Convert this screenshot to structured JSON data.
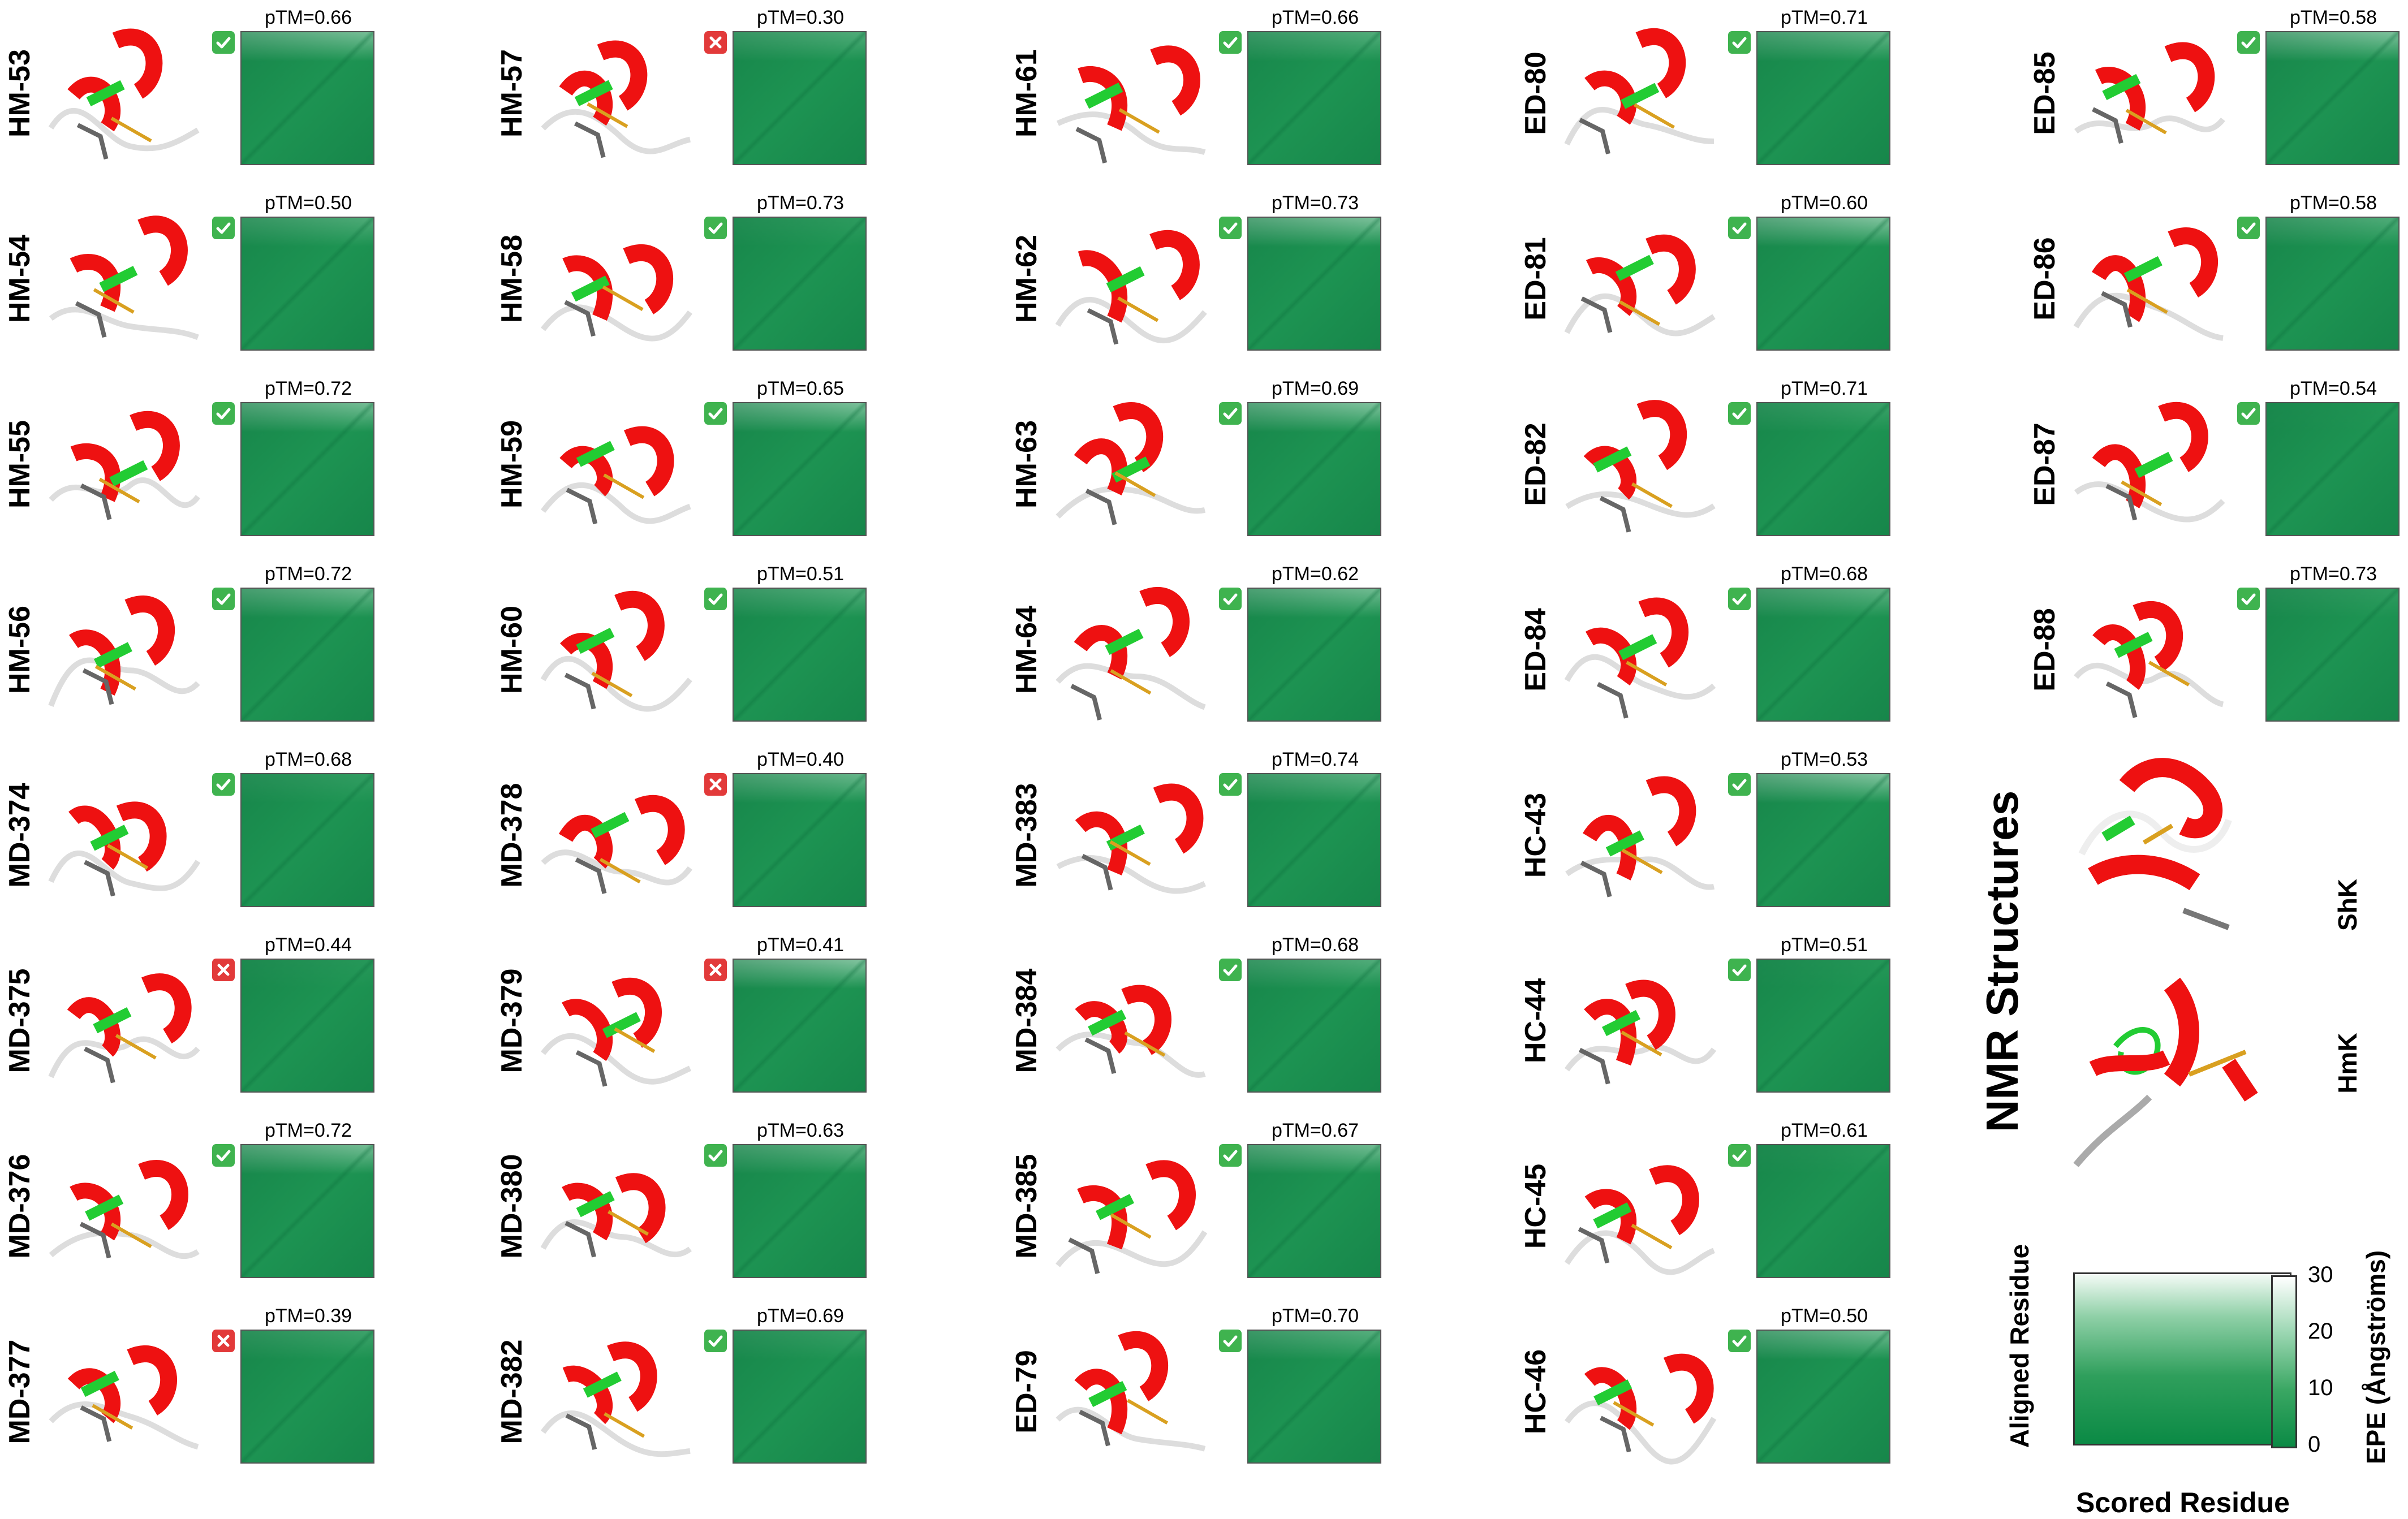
{
  "colors": {
    "pae_low": "#0b8a45",
    "pae_high": "#ffffff",
    "helix": "#ee1111",
    "sheet": "#22ddee",
    "turn": "#22cc33",
    "coil": "#dddddd",
    "pass": "#3fb34f",
    "fail": "#e23a3a"
  },
  "columns": [
    [
      {
        "name": "HM-53",
        "ptm": "pTM=0.66",
        "status": "pass"
      },
      {
        "name": "HM-54",
        "ptm": "pTM=0.50",
        "status": "pass"
      },
      {
        "name": "HM-55",
        "ptm": "pTM=0.72",
        "status": "pass"
      },
      {
        "name": "HM-56",
        "ptm": "pTM=0.72",
        "status": "pass"
      },
      {
        "name": "MD-374",
        "ptm": "pTM=0.68",
        "status": "pass"
      },
      {
        "name": "MD-375",
        "ptm": "pTM=0.44",
        "status": "fail"
      },
      {
        "name": "MD-376",
        "ptm": "pTM=0.72",
        "status": "pass"
      },
      {
        "name": "MD-377",
        "ptm": "pTM=0.39",
        "status": "fail"
      }
    ],
    [
      {
        "name": "HM-57",
        "ptm": "pTM=0.30",
        "status": "fail"
      },
      {
        "name": "HM-58",
        "ptm": "pTM=0.73",
        "status": "pass"
      },
      {
        "name": "HM-59",
        "ptm": "pTM=0.65",
        "status": "pass"
      },
      {
        "name": "HM-60",
        "ptm": "pTM=0.51",
        "status": "pass"
      },
      {
        "name": "MD-378",
        "ptm": "pTM=0.40",
        "status": "fail"
      },
      {
        "name": "MD-379",
        "ptm": "pTM=0.41",
        "status": "fail"
      },
      {
        "name": "MD-380",
        "ptm": "pTM=0.63",
        "status": "pass"
      },
      {
        "name": "MD-382",
        "ptm": "pTM=0.69",
        "status": "pass"
      }
    ],
    [
      {
        "name": "HM-61",
        "ptm": "pTM=0.66",
        "status": "pass"
      },
      {
        "name": "HM-62",
        "ptm": "pTM=0.73",
        "status": "pass"
      },
      {
        "name": "HM-63",
        "ptm": "pTM=0.69",
        "status": "pass"
      },
      {
        "name": "HM-64",
        "ptm": "pTM=0.62",
        "status": "pass"
      },
      {
        "name": "MD-383",
        "ptm": "pTM=0.74",
        "status": "pass"
      },
      {
        "name": "MD-384",
        "ptm": "pTM=0.68",
        "status": "pass"
      },
      {
        "name": "MD-385",
        "ptm": "pTM=0.67",
        "status": "pass"
      },
      {
        "name": "ED-79",
        "ptm": "pTM=0.70",
        "status": "pass"
      }
    ],
    [
      {
        "name": "ED-80",
        "ptm": "pTM=0.71",
        "status": "pass"
      },
      {
        "name": "ED-81",
        "ptm": "pTM=0.60",
        "status": "pass"
      },
      {
        "name": "ED-82",
        "ptm": "pTM=0.71",
        "status": "pass"
      },
      {
        "name": "ED-84",
        "ptm": "pTM=0.68",
        "status": "pass"
      },
      {
        "name": "HC-43",
        "ptm": "pTM=0.53",
        "status": "pass"
      },
      {
        "name": "HC-44",
        "ptm": "pTM=0.51",
        "status": "pass"
      },
      {
        "name": "HC-45",
        "ptm": "pTM=0.61",
        "status": "pass"
      },
      {
        "name": "HC-46",
        "ptm": "pTM=0.50",
        "status": "pass"
      }
    ],
    [
      {
        "name": "ED-85",
        "ptm": "pTM=0.58",
        "status": "pass"
      },
      {
        "name": "ED-86",
        "ptm": "pTM=0.58",
        "status": "pass"
      },
      {
        "name": "ED-87",
        "ptm": "pTM=0.54",
        "status": "pass"
      },
      {
        "name": "ED-88",
        "ptm": "pTM=0.73",
        "status": "pass"
      }
    ]
  ],
  "nmr": {
    "title": "NMR Structures",
    "names": [
      "ShK",
      "HmK"
    ]
  },
  "legend": {
    "xlabel": "Scored Residue",
    "ylabel": "Aligned Residue",
    "colorbar_title": "EPE (Ångströms)",
    "ticks": [
      "30",
      "20",
      "10",
      "0"
    ]
  }
}
